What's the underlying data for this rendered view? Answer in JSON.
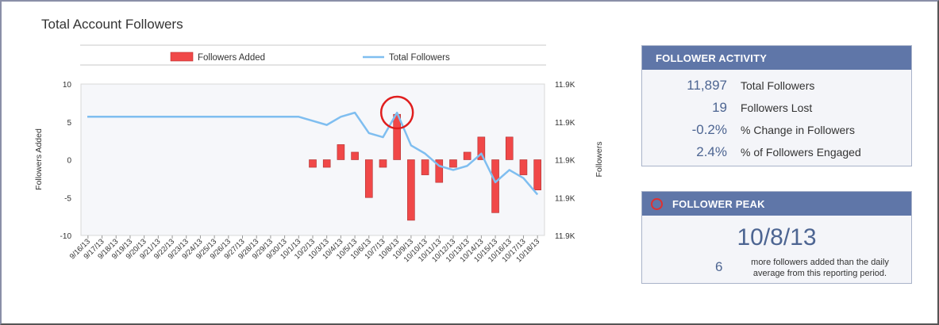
{
  "header": {
    "title": "Total Account Followers"
  },
  "chart_data": {
    "type": "bar+line",
    "legend": {
      "placement": "top",
      "entries": [
        "Followers Added",
        "Total Followers"
      ]
    },
    "categories": [
      "9/16/13",
      "9/17/13",
      "9/18/13",
      "9/19/13",
      "9/20/13",
      "9/21/13",
      "9/22/13",
      "9/23/13",
      "9/24/13",
      "9/25/13",
      "9/26/13",
      "9/27/13",
      "9/28/13",
      "9/29/13",
      "9/30/13",
      "10/1/13",
      "10/2/13",
      "10/3/13",
      "10/4/13",
      "10/5/13",
      "10/6/13",
      "10/7/13",
      "10/8/13",
      "10/9/13",
      "10/10/13",
      "10/11/13",
      "10/12/13",
      "10/13/13",
      "10/14/13",
      "10/15/13",
      "10/16/13",
      "10/17/13",
      "10/18/13"
    ],
    "series": [
      {
        "name": "Followers Added",
        "type": "bar",
        "axis": "left",
        "color": "#f04848",
        "values": [
          0,
          0,
          0,
          0,
          0,
          0,
          0,
          0,
          0,
          0,
          0,
          0,
          0,
          0,
          0,
          0,
          -1,
          -1,
          2,
          1,
          -5,
          -1,
          6,
          -8,
          -2,
          -3,
          -1,
          1,
          3,
          -7,
          3,
          -2,
          -4
        ]
      },
      {
        "name": "Total Followers",
        "type": "line",
        "axis": "right",
        "color": "#7fbef0",
        "values": [
          11897,
          11897,
          11897,
          11897,
          11897,
          11897,
          11897,
          11897,
          11897,
          11897,
          11897,
          11897,
          11897,
          11897,
          11897,
          11897,
          11896,
          11895,
          11897,
          11898,
          11893,
          11892,
          11898,
          11890,
          11888,
          11885,
          11884,
          11885,
          11888,
          11881,
          11884,
          11882,
          11878
        ]
      }
    ],
    "yleft": {
      "label": "Followers Added",
      "min": -10,
      "max": 10,
      "ticks": [
        "10",
        "5",
        "0",
        "-5",
        "-10"
      ]
    },
    "yright": {
      "label": "Followers",
      "ticks": [
        "11.9K",
        "11.9K",
        "11.9K",
        "11.9K",
        "11.9K"
      ]
    },
    "highlight": {
      "category": "10/8/13",
      "marker": "red-circle"
    },
    "grid": false
  },
  "activity": {
    "title": "FOLLOWER ACTIVITY",
    "rows": [
      {
        "value": "11,897",
        "label": "Total Followers"
      },
      {
        "value": "19",
        "label": "Followers Lost"
      },
      {
        "value": "-0.2%",
        "label": "% Change in Followers"
      },
      {
        "value": "2.4%",
        "label": "% of Followers Engaged"
      }
    ]
  },
  "peak": {
    "title": "FOLLOWER PEAK",
    "date": "10/8/13",
    "count": "6",
    "description": "more followers added than the daily average from this reporting period."
  },
  "colors": {
    "panel_header": "#5f76a8",
    "bar": "#f04848",
    "line": "#7fbef0",
    "accent_text": "#4d6592"
  }
}
